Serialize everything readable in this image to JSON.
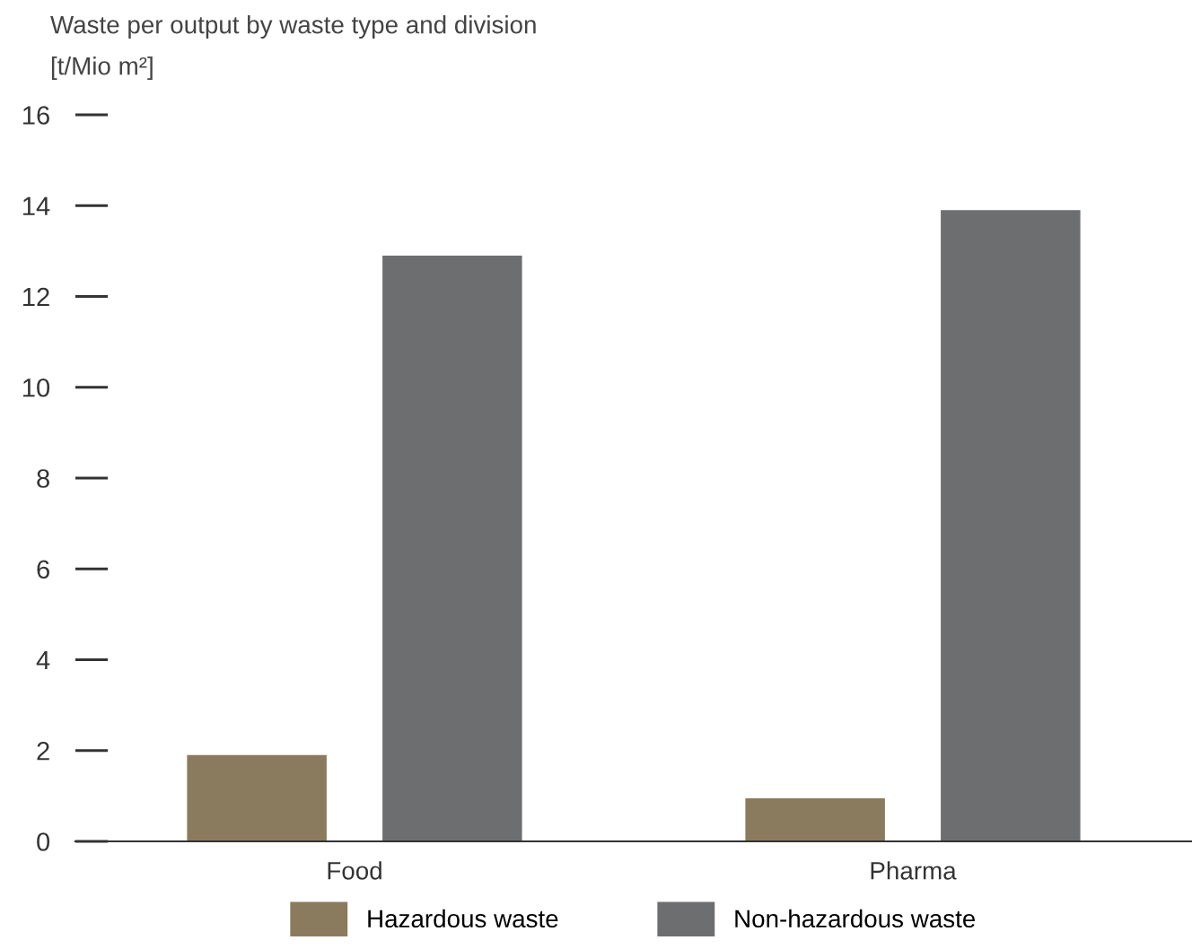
{
  "chart_data": {
    "type": "bar",
    "title": "Waste per output by waste type and division",
    "ylabel": "[t/Mio m²]",
    "categories": [
      "Food",
      "Pharma"
    ],
    "series": [
      {
        "name": "Hazardous waste",
        "color": "#8b7b5e",
        "values": [
          1.9,
          0.95
        ]
      },
      {
        "name": "Non-hazardous waste",
        "color": "#6d6e70",
        "values": [
          12.9,
          13.9
        ]
      }
    ],
    "ylim": [
      0,
      16
    ],
    "yticks": [
      0,
      2,
      4,
      6,
      8,
      10,
      12,
      14,
      16
    ],
    "grid": false,
    "legend": "bottom"
  }
}
